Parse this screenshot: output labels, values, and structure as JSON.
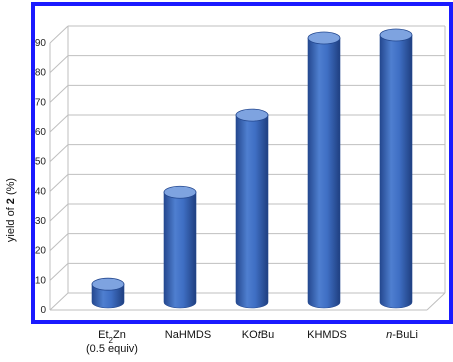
{
  "chart_data": {
    "type": "bar",
    "style": "3d-cylinder",
    "categories": [
      {
        "main": "Et",
        "sub": "2",
        "tail": "Zn",
        "note": "(0.5 equiv)"
      },
      {
        "main": "NaHMDS"
      },
      {
        "main": "KO",
        "italic": "t",
        "tail": "Bu"
      },
      {
        "main": "KHMDS"
      },
      {
        "italic": "n",
        "main": "-BuLi"
      }
    ],
    "values": [
      6,
      37,
      63,
      89,
      90
    ],
    "ylabel": {
      "pre": "yield of ",
      "bold": "2",
      "post": " (%)"
    },
    "ylim": [
      0,
      90
    ],
    "yticks": [
      0,
      10,
      20,
      30,
      40,
      50,
      60,
      70,
      80,
      90
    ],
    "grid": true,
    "colors": {
      "bar": "#3f6fc4",
      "bar_dark": "#24488f",
      "bar_light": "#7ea3e0",
      "frame": "#1a1aff",
      "grid": "#bfbfbf"
    }
  }
}
